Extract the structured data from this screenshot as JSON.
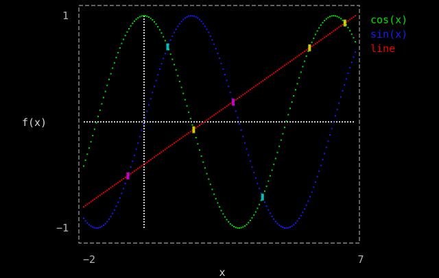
{
  "chart_data": {
    "type": "line",
    "title": "",
    "xlabel": "x",
    "ylabel": "f(x)",
    "xlim": [
      -2,
      7
    ],
    "ylim": [
      -1,
      1
    ],
    "x_ticks": [
      {
        "value": -2,
        "label": "−2"
      },
      {
        "value": 7,
        "label": "7"
      }
    ],
    "y_ticks": [
      {
        "value": 1,
        "label": "1"
      },
      {
        "value": -1,
        "label": "−1"
      }
    ],
    "grid": false,
    "zero_lines": true,
    "legend": {
      "position": "top-right"
    },
    "sampling": {
      "start": -2,
      "end": 7,
      "step": 0.06
    },
    "series": [
      {
        "name": "cos(x)",
        "function": "cos",
        "color": "#00e000"
      },
      {
        "name": "sin(x)",
        "function": "sin",
        "color": "#1a1aff"
      },
      {
        "name": "line",
        "function": "linear",
        "slope": 0.2,
        "intercept": -0.4,
        "color": "#ee0000"
      }
    ],
    "intersection_colors": {
      "cos-sin": "#00d8d8",
      "cos-line": "#e8e800",
      "sin-line": "#e000e0"
    },
    "zero_line_color": "#d0d0d0",
    "frame_color": "#a0a0a0"
  }
}
